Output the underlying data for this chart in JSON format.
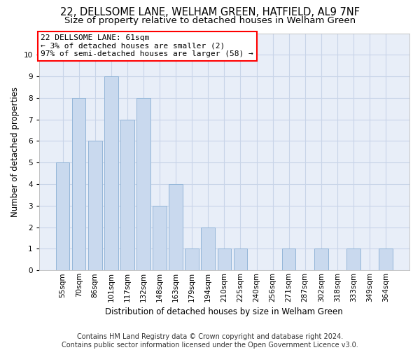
{
  "title": "22, DELLSOME LANE, WELHAM GREEN, HATFIELD, AL9 7NF",
  "subtitle": "Size of property relative to detached houses in Welham Green",
  "xlabel": "Distribution of detached houses by size in Welham Green",
  "ylabel": "Number of detached properties",
  "footer_line1": "Contains HM Land Registry data © Crown copyright and database right 2024.",
  "footer_line2": "Contains public sector information licensed under the Open Government Licence v3.0.",
  "annotation_line1": "22 DELLSOME LANE: 61sqm",
  "annotation_line2": "← 3% of detached houses are smaller (2)",
  "annotation_line3": "97% of semi-detached houses are larger (58) →",
  "categories": [
    "55sqm",
    "70sqm",
    "86sqm",
    "101sqm",
    "117sqm",
    "132sqm",
    "148sqm",
    "163sqm",
    "179sqm",
    "194sqm",
    "210sqm",
    "225sqm",
    "240sqm",
    "256sqm",
    "271sqm",
    "287sqm",
    "302sqm",
    "318sqm",
    "333sqm",
    "349sqm",
    "364sqm"
  ],
  "values": [
    5,
    8,
    6,
    9,
    7,
    8,
    3,
    4,
    1,
    2,
    1,
    1,
    0,
    0,
    1,
    0,
    1,
    0,
    1,
    0,
    1
  ],
  "bar_color": "#c9d9ee",
  "bar_edge_color": "#93b5d8",
  "ylim": [
    0,
    11
  ],
  "yticks": [
    0,
    1,
    2,
    3,
    4,
    5,
    6,
    7,
    8,
    9,
    10
  ],
  "grid_color": "#c8d4e8",
  "background_color": "#e8eef8",
  "title_fontsize": 10.5,
  "subtitle_fontsize": 9.5,
  "axis_label_fontsize": 8.5,
  "tick_fontsize": 7.5,
  "annotation_fontsize": 8,
  "footer_fontsize": 7
}
